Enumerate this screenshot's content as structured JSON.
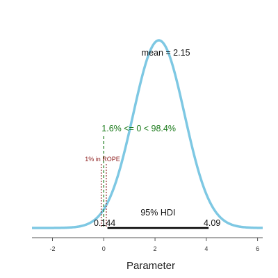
{
  "chart_data": {
    "type": "area",
    "title": "",
    "xlabel": "Parameter",
    "ylabel": "",
    "xlim": [
      -2.8,
      6.2
    ],
    "x_ticks": [
      -2,
      0,
      2,
      4,
      6
    ],
    "x_tick_labels": [
      "-2",
      "0",
      "2",
      "4",
      "6"
    ],
    "grid": false,
    "distribution": {
      "shape": "normal",
      "mean": 2.15,
      "sd": 1.0
    },
    "curve_color": "#7ec8e3",
    "annotations": {
      "mean_label": "mean = 2.15",
      "comparison_label": "1.6% <= 0 < 98.4%",
      "comparison_color": "#1a7a1a",
      "comparison_value": 0,
      "rope_label": "1% in ROPE",
      "rope_color": "#8b1a1a",
      "rope": [
        -0.1,
        0.1
      ],
      "hdi_label": "95% HDI",
      "hdi": [
        0.144,
        4.09
      ],
      "hdi_low_label": "0.144",
      "hdi_high_label": "4.09"
    }
  }
}
